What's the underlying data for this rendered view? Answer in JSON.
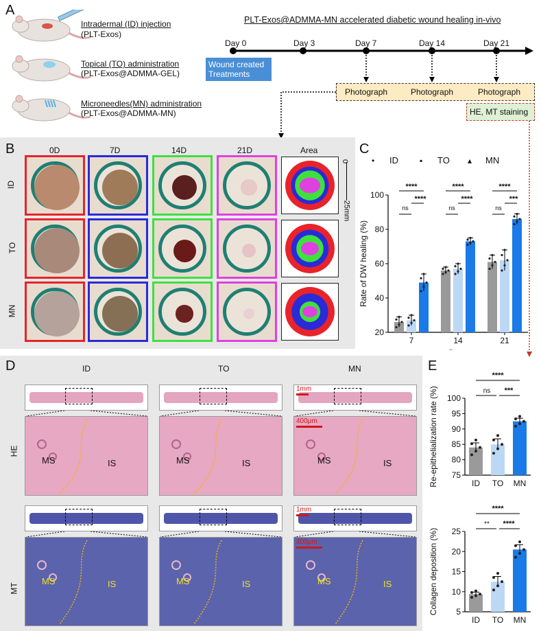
{
  "panelA": {
    "letter": "A",
    "title": "PLT-Exos@ADMMA-MN accelerated diabetic wound healing in-vivo",
    "groups": [
      {
        "line1": "Intradermal (ID) injection",
        "line2": "(PLT-Exos)"
      },
      {
        "line1": "Topical (TO) administration",
        "line2": "(PLT-Exos@ADMMA-GEL)"
      },
      {
        "line1": "Microneedles(MN) administration",
        "line2": "(PLT-Exos@ADMMA-MN)"
      }
    ],
    "days": [
      "Day 0",
      "Day 3",
      "Day 7",
      "Day 14",
      "Day 21"
    ],
    "wound_box": {
      "line1": "Wound created",
      "line2": "Treatments"
    },
    "photograph": [
      "Photograph",
      "Photograph",
      "Photograph"
    ],
    "staining": "HE, MT staining"
  },
  "panelB": {
    "letter": "B",
    "columns": [
      "0D",
      "7D",
      "14D",
      "21D",
      "Area"
    ],
    "rows": [
      "ID",
      "TO",
      "MN"
    ],
    "scale": {
      "top": "0",
      "bottom": "25mm"
    },
    "colors": {
      "0D": "#e8232a",
      "7D": "#2a2ad8",
      "14D": "#3ee03e",
      "21D": "#e040e0"
    }
  },
  "panelC": {
    "letter": "C",
    "chart_data": {
      "type": "bar",
      "title": "",
      "categories": [
        "7",
        "14",
        "21"
      ],
      "series": [
        {
          "name": "ID",
          "marker": "•",
          "color": "#9a9a9a",
          "values": [
            26,
            56,
            61
          ],
          "errors": [
            3,
            2,
            4
          ]
        },
        {
          "name": "TO",
          "marker": "▪",
          "color": "#bcd8f5",
          "values": [
            27,
            57,
            62
          ],
          "errors": [
            3,
            3,
            6
          ]
        },
        {
          "name": "MN",
          "marker": "▴",
          "color": "#1a7ae8",
          "values": [
            49,
            73,
            86
          ],
          "errors": [
            5,
            2,
            3
          ]
        }
      ],
      "xlabel": "Days",
      "ylabel": "Rate of DW healing (%)",
      "ylim": [
        20,
        100
      ],
      "yticks": [
        "20",
        "40",
        "60",
        "80",
        "100"
      ],
      "significance": [
        {
          "top": "****",
          "mid": "****",
          "low": "ns"
        },
        {
          "top": "****",
          "mid": "****",
          "low": "ns"
        },
        {
          "top": "****",
          "mid": "***",
          "low": "ns"
        }
      ]
    }
  },
  "panelD": {
    "letter": "D",
    "columns": [
      "ID",
      "TO",
      "MN"
    ],
    "rows": [
      "HE",
      "MT"
    ],
    "labels": {
      "ms": "MS",
      "is": "IS"
    },
    "scale_small": "1mm",
    "scale_large": "400μm"
  },
  "panelE": {
    "letter": "E",
    "chart_data": [
      {
        "type": "bar",
        "categories": [
          "ID",
          "TO",
          "MN"
        ],
        "values": [
          84,
          85,
          92.5
        ],
        "errors": [
          1.5,
          1.8,
          1.0
        ],
        "colors": [
          "#9a9a9a",
          "#bcd8f5",
          "#1a7ae8"
        ],
        "ylabel": "Re-epithelialization rate (%)",
        "ylim": [
          75,
          100
        ],
        "yticks": [
          "75",
          "80",
          "85",
          "90",
          "95",
          "100"
        ],
        "significance": {
          "top": "****",
          "left": "ns",
          "right": "***"
        }
      },
      {
        "type": "bar",
        "categories": [
          "ID",
          "TO",
          "MN"
        ],
        "values": [
          9.4,
          12.5,
          20.5
        ],
        "errors": [
          0.5,
          1.3,
          1.2
        ],
        "colors": [
          "#9a9a9a",
          "#bcd8f5",
          "#1a7ae8"
        ],
        "ylabel": "Collagen deposition (%)",
        "ylim": [
          5,
          25
        ],
        "yticks": [
          "5",
          "10",
          "15",
          "20",
          "25"
        ],
        "significance": {
          "top": "****",
          "left": "**",
          "right": "****"
        }
      }
    ]
  }
}
